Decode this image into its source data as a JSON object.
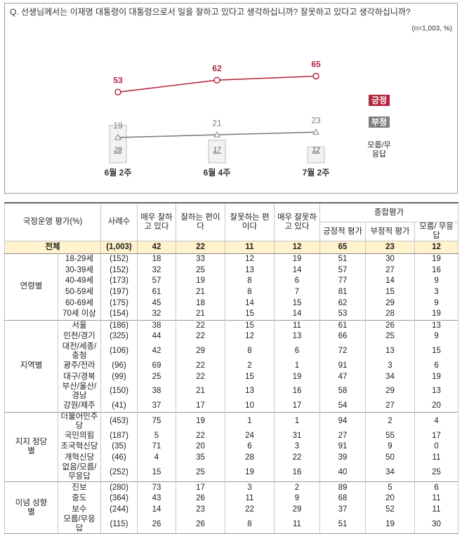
{
  "chart_data": {
    "type": "line",
    "title": "Q. 선생님께서는 이재명 대통령이 대통령으로서 일을 잘하고 있다고 생각하십니까? 잘못하고 있다고 생각하십니까?",
    "subtitle": "(n=1,003, %)",
    "categories": [
      "6월 2주",
      "6월 4주",
      "7월 2주"
    ],
    "series": [
      {
        "name": "긍정",
        "color": "#b2263e",
        "marker": "circle",
        "values": [
          53,
          62,
          65
        ]
      },
      {
        "name": "부정",
        "color": "#7f7f7f",
        "marker": "triangle",
        "values": [
          19,
          21,
          23
        ]
      },
      {
        "name": "모름/무응답",
        "type": "bar",
        "color": "#f2f2f2",
        "values": [
          28,
          17,
          12
        ]
      }
    ]
  },
  "table": {
    "header": {
      "label": "국정운영 평가(%)",
      "n": "사례수",
      "cols": [
        "매우 잘하고 있다",
        "잘하는 편이다",
        "잘못하는 편이다",
        "매우 잘못하고 있다"
      ],
      "group": "종합평가",
      "subcols": [
        "긍정적 평가",
        "부정적 평가",
        "모름/ 무응답"
      ]
    },
    "total": {
      "label": "전체",
      "n": "(1,003)",
      "values": [
        42,
        22,
        11,
        12,
        65,
        23,
        12
      ]
    },
    "groups": [
      {
        "label": "연령별",
        "rows": [
          {
            "label": "18-29세",
            "n": "(152)",
            "values": [
              18,
              33,
              12,
              19,
              51,
              30,
              19
            ]
          },
          {
            "label": "30-39세",
            "n": "(152)",
            "values": [
              32,
              25,
              13,
              14,
              57,
              27,
              16
            ]
          },
          {
            "label": "40-49세",
            "n": "(173)",
            "values": [
              57,
              19,
              8,
              6,
              77,
              14,
              9
            ]
          },
          {
            "label": "50-59세",
            "n": "(197)",
            "values": [
              61,
              21,
              8,
              7,
              81,
              15,
              3
            ]
          },
          {
            "label": "60-69세",
            "n": "(175)",
            "values": [
              45,
              18,
              14,
              15,
              62,
              29,
              9
            ]
          },
          {
            "label": "70세 이상",
            "n": "(154)",
            "values": [
              32,
              21,
              15,
              14,
              53,
              28,
              19
            ]
          }
        ]
      },
      {
        "label": "지역별",
        "rows": [
          {
            "label": "서울",
            "n": "(186)",
            "values": [
              38,
              22,
              15,
              11,
              61,
              26,
              13
            ]
          },
          {
            "label": "인천/경기",
            "n": "(325)",
            "values": [
              44,
              22,
              12,
              13,
              66,
              25,
              9
            ]
          },
          {
            "label": "대전/세종/충청",
            "n": "(106)",
            "values": [
              42,
              29,
              8,
              6,
              72,
              13,
              15
            ]
          },
          {
            "label": "광주/전라",
            "n": "(96)",
            "values": [
              69,
              22,
              2,
              1,
              91,
              3,
              6
            ]
          },
          {
            "label": "대구/경북",
            "n": "(99)",
            "values": [
              25,
              22,
              15,
              19,
              47,
              34,
              19
            ]
          },
          {
            "label": "부산/울산/경남",
            "n": "(150)",
            "values": [
              38,
              21,
              13,
              16,
              58,
              29,
              13
            ]
          },
          {
            "label": "강원/제주",
            "n": "(41)",
            "values": [
              37,
              17,
              10,
              17,
              54,
              27,
              20
            ]
          }
        ]
      },
      {
        "label": "지지 정당별",
        "rows": [
          {
            "label": "더불어민주당",
            "n": "(453)",
            "values": [
              75,
              19,
              1,
              1,
              94,
              2,
              4
            ]
          },
          {
            "label": "국민의힘",
            "n": "(187)",
            "values": [
              5,
              22,
              24,
              31,
              27,
              55,
              17
            ]
          },
          {
            "label": "조국혁신당",
            "n": "(35)",
            "values": [
              71,
              20,
              6,
              3,
              91,
              9,
              0
            ]
          },
          {
            "label": "개혁신당",
            "n": "(46)",
            "values": [
              4,
              35,
              28,
              22,
              39,
              50,
              11
            ]
          },
          {
            "label": "없음/모름/무응답",
            "n": "(252)",
            "values": [
              15,
              25,
              19,
              16,
              40,
              34,
              25
            ]
          }
        ]
      },
      {
        "label": "이념 성향별",
        "rows": [
          {
            "label": "진보",
            "n": "(280)",
            "values": [
              73,
              17,
              3,
              2,
              89,
              5,
              6
            ]
          },
          {
            "label": "중도",
            "n": "(364)",
            "values": [
              43,
              26,
              11,
              9,
              68,
              20,
              11
            ]
          },
          {
            "label": "보수",
            "n": "(244)",
            "values": [
              14,
              23,
              22,
              29,
              37,
              52,
              11
            ]
          },
          {
            "label": "모름/무응답",
            "n": "(115)",
            "values": [
              26,
              26,
              8,
              11,
              51,
              19,
              30
            ]
          }
        ]
      }
    ]
  }
}
